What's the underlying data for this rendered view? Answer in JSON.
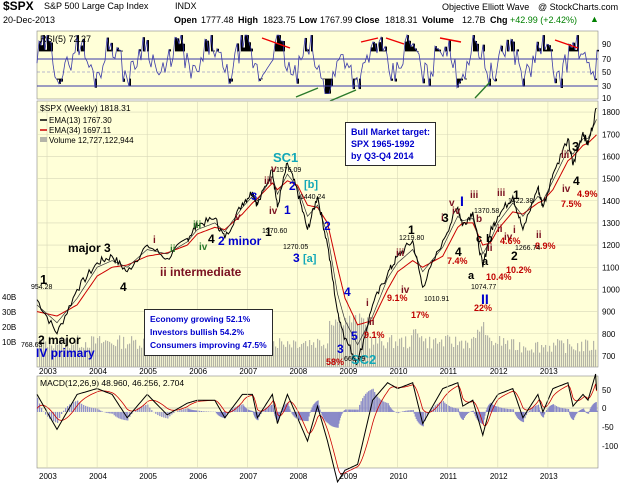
{
  "header": {
    "symbol": "$SPX",
    "name": "S&P 500 Large Cap Index",
    "exchange": "INDX",
    "brand": "Objective Elliott Wave",
    "site": "@ StockCharts.com",
    "date": "20-Dec-2013",
    "open_label": "Open",
    "open": "1777.48",
    "high_label": "High",
    "high": "1823.75",
    "low_label": "Low",
    "low": "1767.99",
    "close_label": "Close",
    "close": "1818.31",
    "volume_label": "Volume",
    "volume": "12.7B",
    "chg_label": "Chg",
    "chg": "+42.99 (+2.42%)",
    "chg_arrow": "▲"
  },
  "colors": {
    "panel_bg": "#ffffd8",
    "grid": "#d8d8b8",
    "price": "#000000",
    "ema13": "#000000",
    "ema34": "#cc0000",
    "volume": "#b4b4a8",
    "rsi": "#3a3aa8",
    "rsi_fill": "#000000",
    "blue_text": "#0000cc",
    "black_text": "#000000",
    "maroon": "#7a1020",
    "cyan": "#13a8b8",
    "dkred": "#c00000",
    "green": "#2a7a2a"
  },
  "rsi": {
    "legend": "RSI(5) 72.27",
    "current": 72.27,
    "levels": [
      30,
      50,
      70
    ],
    "ticks": [
      "90",
      "70",
      "50",
      "30",
      "10"
    ]
  },
  "price_panel": {
    "legend_title": "$SPX (Weekly) 1818.31",
    "legend_ema13": "EMA(13) 1767.30",
    "legend_ema34": "EMA(34) 1697.11",
    "legend_volume": "Volume 12,727,122,944",
    "volume_ticks": [
      "40B",
      "30B",
      "20B",
      "10B"
    ],
    "y_ticks": [
      "1800",
      "1700",
      "1600",
      "1500",
      "1400",
      "1300",
      "1200",
      "1100",
      "1000",
      "900",
      "800",
      "700"
    ]
  },
  "target_box": [
    "Bull Market target:",
    "SPX 1965-1992",
    "by Q3-Q4 2014"
  ],
  "sentiment_box": [
    "Economy growing 52.1%",
    "Investors bullish 54.2%",
    "Consumers improving 47.5%"
  ],
  "macd": {
    "legend": "MACD(12,26,9) 48.960, 46.256, 2.704",
    "macd": 48.96,
    "signal": 46.256,
    "hist": 2.704,
    "ticks": [
      "50",
      "0",
      "-50",
      "-100"
    ]
  },
  "x_axis": [
    "2003",
    "2004",
    "2005",
    "2006",
    "2007",
    "2008",
    "2009",
    "2010",
    "2011",
    "2012",
    "2013"
  ],
  "wave_labels": {
    "l1": "1",
    "l2": "2 major",
    "l3": "IV primary",
    "l4": "major 3",
    "l5": "4",
    "l6": "i",
    "l7": "ii",
    "l8": "iii",
    "l9": "iv",
    "l10": "v",
    "l11": "ii intermediate",
    "l12": "4",
    "l13": "2 minor",
    "l14": "3",
    "l15": "iii",
    "l16": "iv",
    "l17": "v",
    "l18": "1",
    "l19": "SC1",
    "l20": "2",
    "l21": "[b]",
    "l22": "[a]",
    "l23": "3",
    "l24": "1",
    "l25": "2",
    "l26": "4",
    "l27": "5",
    "l28": "SC2",
    "l29": "3",
    "l30": "58%",
    "l31": "i",
    "l32": "ii",
    "l33": "9.1%",
    "l34": "iii",
    "l35": "iv",
    "l36": "9.1%",
    "l37": "17%",
    "l38": "1",
    "l39": "i",
    "l40": "iv",
    "l41": "v",
    "l42": "I",
    "l43": "iii",
    "l44": "4",
    "l45": "3",
    "l46": "7.4%",
    "l47": "a",
    "l48": "b",
    "l49": "c",
    "l50": "b",
    "l51": "a",
    "l52": "ii",
    "l53": "II",
    "l54": "22%",
    "l55": "10.4%",
    "l56": "iii",
    "l57": "1",
    "l58": "2",
    "l59": "10.2%",
    "l60": "i",
    "l61": "ii",
    "l62": "iv",
    "l63": "4.6%",
    "l64": "ii",
    "l65": "8.9%",
    "l66": "iii",
    "l67": "3",
    "l68": "iv",
    "l69": "4",
    "l70": "7.5%",
    "l71": "4.9%"
  },
  "price_labels": {
    "p954": "954.28",
    "p768": "768.63",
    "p1576": "1576.09",
    "p1440": "1440.24",
    "p1370a": "1370.60",
    "p1270": "1270.05",
    "p666": "666.79",
    "p1219": "1219.80",
    "p1010": "1010.91",
    "p1370b": "1370.58",
    "p1074": "1074.77",
    "p1422": "1422.38",
    "p1266": "1266.74"
  },
  "chart_data": {
    "type": "line",
    "title": "$SPX S&P 500 Large Cap Index (Weekly)",
    "x": [
      2002.8,
      2003.2,
      2003.6,
      2004.0,
      2004.3,
      2004.6,
      2005.0,
      2005.4,
      2005.8,
      2006.0,
      2006.35,
      2006.55,
      2006.9,
      2007.1,
      2007.2,
      2007.5,
      2007.6,
      2007.8,
      2008.0,
      2008.2,
      2008.4,
      2008.6,
      2008.8,
      2008.95,
      2009.2,
      2009.5,
      2009.8,
      2010.0,
      2010.3,
      2010.5,
      2010.9,
      2011.2,
      2011.3,
      2011.5,
      2011.7,
      2011.85,
      2012.0,
      2012.3,
      2012.5,
      2012.8,
      2012.9,
      2013.1,
      2013.4,
      2013.5,
      2013.7,
      2013.8,
      2013.97
    ],
    "series": [
      {
        "name": "$SPX (Weekly)",
        "values": [
          954,
          800,
          1000,
          1120,
          1150,
          1080,
          1200,
          1140,
          1230,
          1290,
          1320,
          1230,
          1390,
          1440,
          1380,
          1540,
          1370,
          1570,
          1440,
          1270,
          1420,
          1200,
          900,
          780,
          667,
          930,
          1070,
          1150,
          1220,
          1010,
          1220,
          1370,
          1290,
          1350,
          1100,
          1260,
          1330,
          1420,
          1270,
          1460,
          1370,
          1520,
          1680,
          1560,
          1710,
          1650,
          1818
        ]
      },
      {
        "name": "EMA(13)",
        "values": [
          930,
          850,
          960,
          1100,
          1130,
          1100,
          1180,
          1160,
          1215,
          1270,
          1300,
          1260,
          1370,
          1420,
          1400,
          1510,
          1430,
          1520,
          1460,
          1330,
          1380,
          1250,
          980,
          860,
          750,
          880,
          1050,
          1120,
          1180,
          1080,
          1190,
          1330,
          1310,
          1320,
          1160,
          1220,
          1300,
          1390,
          1330,
          1420,
          1400,
          1490,
          1630,
          1610,
          1680,
          1680,
          1767
        ]
      },
      {
        "name": "EMA(34)",
        "values": [
          900,
          880,
          930,
          1060,
          1100,
          1110,
          1150,
          1165,
          1200,
          1250,
          1280,
          1270,
          1340,
          1390,
          1410,
          1480,
          1450,
          1490,
          1470,
          1380,
          1370,
          1300,
          1100,
          960,
          840,
          860,
          1000,
          1080,
          1130,
          1100,
          1150,
          1280,
          1300,
          1300,
          1200,
          1210,
          1270,
          1350,
          1340,
          1390,
          1400,
          1450,
          1580,
          1600,
          1650,
          1660,
          1697
        ]
      }
    ],
    "annotations": {
      "SC1": 1576.09,
      "SC2": 666.79,
      "target": "SPX 1965-1992 by Q3-Q4 2014"
    },
    "ylim": [
      650,
      1850
    ],
    "xlim": [
      2002.8,
      2014.0
    ]
  }
}
